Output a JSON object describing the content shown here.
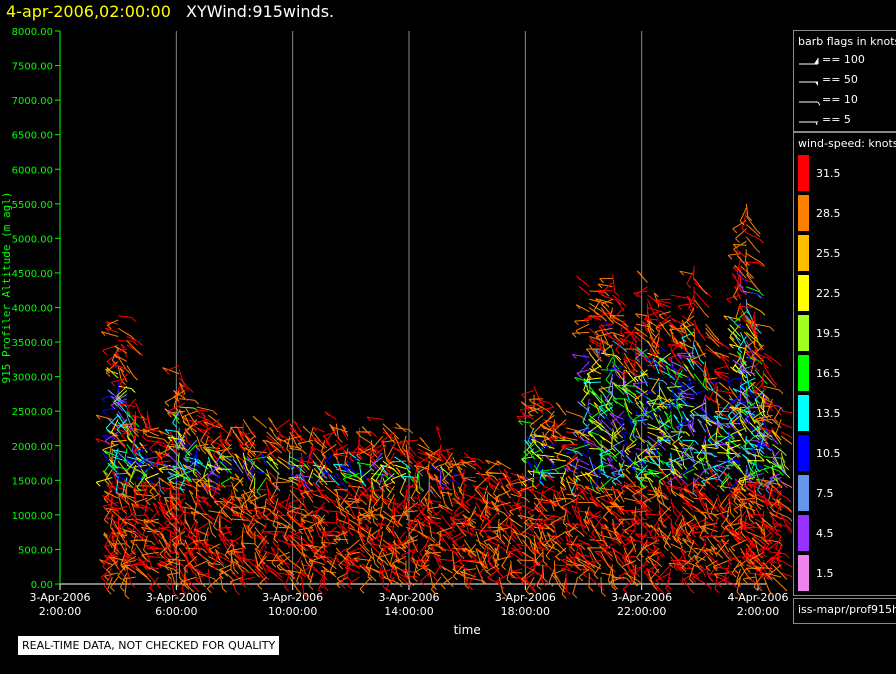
{
  "title": {
    "time": "4-apr-2006,02:00:00",
    "name": "XYWind:915winds."
  },
  "chart_data": {
    "type": "scatter",
    "ylabel": "915 Profiler Altitude (m agl)",
    "xlabel": "time",
    "ylim": [
      0,
      8000
    ],
    "y_ticks": [
      "8000.00",
      "7500.00",
      "7000.00",
      "6500.00",
      "6000.00",
      "5500.00",
      "5000.00",
      "4500.00",
      "4000.00",
      "3500.00",
      "3000.00",
      "2500.00",
      "2000.00",
      "1500.00",
      "1000.00",
      "500.00",
      "0.00"
    ],
    "x_ticks": [
      {
        "line1": "3-Apr-2006",
        "line2": "2:00:00"
      },
      {
        "line1": "3-Apr-2006",
        "line2": "6:00:00"
      },
      {
        "line1": "3-Apr-2006",
        "line2": "10:00:00"
      },
      {
        "line1": "3-Apr-2006",
        "line2": "14:00:00"
      },
      {
        "line1": "3-Apr-2006",
        "line2": "18:00:00"
      },
      {
        "line1": "3-Apr-2006",
        "line2": "22:00:00"
      },
      {
        "line1": "4-Apr-2006",
        "line2": "2:00:00"
      }
    ],
    "x_range_hours": [
      0,
      24
    ],
    "grid_vertical": true,
    "profiles": [
      {
        "t": 1.8,
        "top": 2400,
        "seed": 1
      },
      {
        "t": 2.0,
        "top": 3900,
        "seed": 2
      },
      {
        "t": 2.3,
        "top": 3600,
        "seed": 3
      },
      {
        "t": 2.6,
        "top": 2700,
        "seed": 4
      },
      {
        "t": 3.0,
        "top": 2500,
        "seed": 5
      },
      {
        "t": 3.4,
        "top": 2300,
        "seed": 6
      },
      {
        "t": 3.8,
        "top": 2200,
        "seed": 7
      },
      {
        "t": 4.1,
        "top": 3200,
        "seed": 8
      },
      {
        "t": 4.3,
        "top": 2800,
        "seed": 9
      },
      {
        "t": 4.7,
        "top": 2600,
        "seed": 10
      },
      {
        "t": 5.1,
        "top": 2500,
        "seed": 11
      },
      {
        "t": 5.5,
        "top": 2400,
        "seed": 12
      },
      {
        "t": 5.9,
        "top": 2300,
        "seed": 13
      },
      {
        "t": 6.3,
        "top": 2400,
        "seed": 14
      },
      {
        "t": 6.7,
        "top": 2200,
        "seed": 15
      },
      {
        "t": 7.1,
        "top": 2300,
        "seed": 16
      },
      {
        "t": 7.5,
        "top": 2200,
        "seed": 17
      },
      {
        "t": 7.9,
        "top": 2400,
        "seed": 18
      },
      {
        "t": 8.3,
        "top": 2200,
        "seed": 19
      },
      {
        "t": 8.7,
        "top": 2300,
        "seed": 20
      },
      {
        "t": 9.1,
        "top": 2200,
        "seed": 21
      },
      {
        "t": 9.5,
        "top": 2400,
        "seed": 22
      },
      {
        "t": 9.9,
        "top": 2200,
        "seed": 23
      },
      {
        "t": 10.3,
        "top": 2300,
        "seed": 24
      },
      {
        "t": 10.7,
        "top": 2200,
        "seed": 25
      },
      {
        "t": 11.1,
        "top": 2400,
        "seed": 26
      },
      {
        "t": 11.5,
        "top": 2300,
        "seed": 27
      },
      {
        "t": 11.9,
        "top": 2200,
        "seed": 28
      },
      {
        "t": 12.3,
        "top": 2100,
        "seed": 29
      },
      {
        "t": 12.7,
        "top": 2000,
        "seed": 30
      },
      {
        "t": 13.1,
        "top": 2100,
        "seed": 31
      },
      {
        "t": 13.5,
        "top": 2000,
        "seed": 32
      },
      {
        "t": 13.9,
        "top": 1900,
        "seed": 33
      },
      {
        "t": 14.3,
        "top": 1800,
        "seed": 34
      },
      {
        "t": 14.7,
        "top": 1700,
        "seed": 35
      },
      {
        "t": 15.1,
        "top": 1800,
        "seed": 36
      },
      {
        "t": 15.5,
        "top": 1700,
        "seed": 37
      },
      {
        "t": 15.9,
        "top": 1600,
        "seed": 38
      },
      {
        "t": 16.3,
        "top": 2900,
        "seed": 39
      },
      {
        "t": 16.6,
        "top": 2700,
        "seed": 40
      },
      {
        "t": 17.0,
        "top": 2600,
        "seed": 41
      },
      {
        "t": 17.4,
        "top": 2500,
        "seed": 42
      },
      {
        "t": 17.8,
        "top": 2200,
        "seed": 43
      },
      {
        "t": 18.2,
        "top": 4300,
        "seed": 44
      },
      {
        "t": 18.6,
        "top": 4200,
        "seed": 45
      },
      {
        "t": 19.0,
        "top": 4500,
        "seed": 46
      },
      {
        "t": 19.4,
        "top": 4000,
        "seed": 47
      },
      {
        "t": 19.8,
        "top": 3800,
        "seed": 48
      },
      {
        "t": 20.2,
        "top": 4400,
        "seed": 49
      },
      {
        "t": 20.6,
        "top": 4000,
        "seed": 50
      },
      {
        "t": 21.0,
        "top": 4200,
        "seed": 51
      },
      {
        "t": 21.4,
        "top": 3900,
        "seed": 52
      },
      {
        "t": 21.8,
        "top": 4600,
        "seed": 53
      },
      {
        "t": 22.2,
        "top": 3800,
        "seed": 54
      },
      {
        "t": 22.6,
        "top": 3000,
        "seed": 55
      },
      {
        "t": 23.0,
        "top": 3400,
        "seed": 56
      },
      {
        "t": 23.4,
        "top": 4800,
        "seed": 57
      },
      {
        "t": 23.6,
        "top": 5500,
        "seed": 58
      },
      {
        "t": 23.9,
        "top": 4000,
        "seed": 59
      },
      {
        "t": 24.2,
        "top": 3500,
        "seed": 60
      },
      {
        "t": 24.5,
        "top": 2700,
        "seed": 61
      },
      {
        "t": 24.8,
        "top": 2600,
        "seed": 62
      }
    ]
  },
  "legend": {
    "barb_title": "barb flags in knots",
    "barbs": [
      {
        "label": "== 100",
        "icon": "barb-100-icon"
      },
      {
        "label": "== 50",
        "icon": "barb-50-icon"
      },
      {
        "label": "== 10",
        "icon": "barb-10-icon"
      },
      {
        "label": "== 5",
        "icon": "barb-5-icon"
      }
    ],
    "speed_title": "wind-speed: knots",
    "speed_bins": [
      {
        "label": "31.5",
        "color": "#ff0000"
      },
      {
        "label": "28.5",
        "color": "#ff7f00"
      },
      {
        "label": "25.5",
        "color": "#ffbf00"
      },
      {
        "label": "22.5",
        "color": "#ffff00"
      },
      {
        "label": "19.5",
        "color": "#a0ff20"
      },
      {
        "label": "16.5",
        "color": "#00ff00"
      },
      {
        "label": "13.5",
        "color": "#00ffff"
      },
      {
        "label": "10.5",
        "color": "#0000ff"
      },
      {
        "label": "7.5",
        "color": "#6495ed"
      },
      {
        "label": "4.5",
        "color": "#9932ff"
      },
      {
        "label": "1.5",
        "color": "#ee82ee"
      }
    ],
    "source": "iss-mapr/prof915h"
  },
  "qc_note": "REAL-TIME DATA, NOT CHECKED FOR QUALITY",
  "colors": {
    "axis": "#00ff00",
    "title_time": "#ffff00",
    "grid": "#888888"
  }
}
